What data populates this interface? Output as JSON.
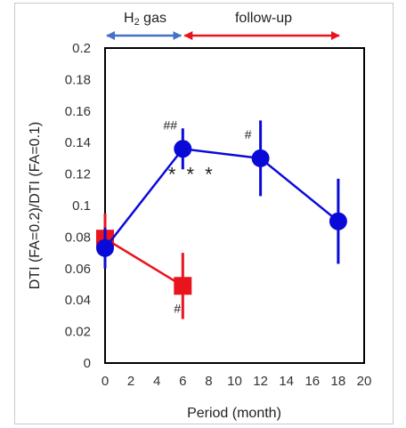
{
  "phases": [
    {
      "label_main": "H",
      "label_sub": "2",
      "label_rest": " gas",
      "x_range": [
        0,
        6
      ],
      "color": "#4472c4"
    },
    {
      "label": "follow-up",
      "x_range": [
        6,
        18
      ],
      "color": "#e8141e"
    }
  ],
  "chart_data": {
    "type": "scatter",
    "xlabel": "Period (month)",
    "ylabel": "DTI (FA=0.2)/DTI (FA=0.1)",
    "xlim": [
      0,
      20
    ],
    "ylim": [
      0,
      0.2
    ],
    "xticks": [
      0,
      2,
      4,
      6,
      8,
      10,
      12,
      14,
      16,
      18,
      20
    ],
    "xtick_labels": [
      "0",
      "2",
      "4",
      "6",
      "8",
      "10",
      "12",
      "14",
      "16",
      "18",
      "20"
    ],
    "yticks": [
      0,
      0.02,
      0.04,
      0.06,
      0.08,
      0.1,
      0.12,
      0.14,
      0.16,
      0.18,
      0.2
    ],
    "ytick_labels": [
      "0",
      "0.02",
      "0.04",
      "0.06",
      "0.08",
      "0.1",
      "0.12",
      "0.14",
      "0.16",
      "0.18",
      "0.2"
    ],
    "grid": false,
    "series": [
      {
        "color": "#e8141e",
        "marker": "square",
        "points": [
          {
            "x": 0,
            "y": 0.079,
            "err": 0.016
          },
          {
            "x": 6,
            "y": 0.049,
            "err": 0.021
          }
        ]
      },
      {
        "color": "#0a0ad8",
        "marker": "circle",
        "points": [
          {
            "x": 0,
            "y": 0.073,
            "err": 0.013
          },
          {
            "x": 6,
            "y": 0.136,
            "err": 0.013
          },
          {
            "x": 12,
            "y": 0.13,
            "err": 0.024
          },
          {
            "x": 18,
            "y": 0.09,
            "err": 0.027
          }
        ]
      }
    ],
    "annotations": [
      {
        "text": "##",
        "x": 6,
        "y": 0.136,
        "pos": "above-left"
      },
      {
        "text": "* * *",
        "x": 6,
        "y": 0.136,
        "pos": "below-right"
      },
      {
        "text": "#",
        "x": 12,
        "y": 0.13,
        "pos": "above-left"
      },
      {
        "text": "#",
        "x": 6,
        "y": 0.049,
        "pos": "below-left"
      }
    ]
  }
}
